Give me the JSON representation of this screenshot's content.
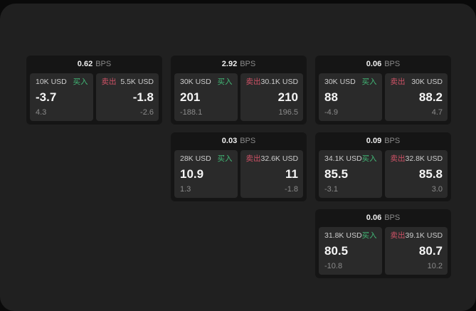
{
  "colors": {
    "buy_accent": "#42b977",
    "sell_accent": "#cf5266",
    "screen_bg": "#202020",
    "card_bg": "#151515",
    "tile_bg": "#2a2a2a"
  },
  "cards": [
    {
      "bps": "0.62",
      "unit": "BPS",
      "buy": {
        "amount": "10K USD",
        "label": "买入",
        "price": "-3.7",
        "change": "4.3"
      },
      "sell": {
        "label": "卖出",
        "amount": "5.5K USD",
        "price": "-1.8",
        "change": "-2.6"
      }
    },
    {
      "bps": "2.92",
      "unit": "BPS",
      "buy": {
        "amount": "30K USD",
        "label": "买入",
        "price": "201",
        "change": "-188.1"
      },
      "sell": {
        "label": "卖出",
        "amount": "30.1K USD",
        "price": "210",
        "change": "196.5"
      }
    },
    {
      "bps": "0.06",
      "unit": "BPS",
      "buy": {
        "amount": "30K USD",
        "label": "买入",
        "price": "88",
        "change": "-4.9"
      },
      "sell": {
        "label": "卖出",
        "amount": "30K USD",
        "price": "88.2",
        "change": "4.7"
      }
    },
    {
      "bps": "0.03",
      "unit": "BPS",
      "buy": {
        "amount": "28K USD",
        "label": "买入",
        "price": "10.9",
        "change": "1.3"
      },
      "sell": {
        "label": "卖出",
        "amount": "32.6K USD",
        "price": "11",
        "change": "-1.8"
      }
    },
    {
      "bps": "0.09",
      "unit": "BPS",
      "buy": {
        "amount": "34.1K USD",
        "label": "买入",
        "price": "85.5",
        "change": "-3.1"
      },
      "sell": {
        "label": "卖出",
        "amount": "32.8K USD",
        "price": "85.8",
        "change": "3.0"
      }
    },
    {
      "bps": "0.06",
      "unit": "BPS",
      "buy": {
        "amount": "31.8K USD",
        "label": "买入",
        "price": "80.5",
        "change": "-10.8"
      },
      "sell": {
        "label": "卖出",
        "amount": "39.1K USD",
        "price": "80.7",
        "change": "10.2"
      }
    }
  ]
}
